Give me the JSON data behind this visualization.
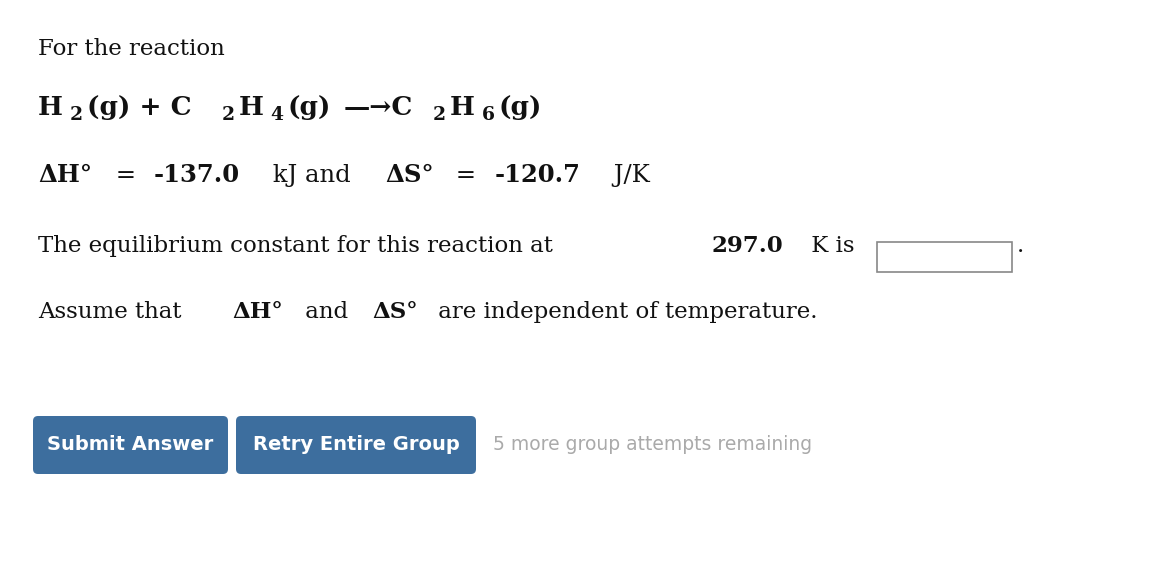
{
  "background_color": "#ffffff",
  "line1": "For the reaction",
  "btn1_text": "Submit Answer",
  "btn2_text": "Retry Entire Group",
  "btn_color": "#3d6e9e",
  "btn_text_color": "#ffffff",
  "remaining_text": "5 more group attempts remaining",
  "remaining_color": "#aaaaaa",
  "text_color": "#111111",
  "line3_parts": [
    [
      "ΔH°",
      true
    ],
    [
      " = ",
      false
    ],
    [
      "-137.0",
      true
    ],
    [
      " kJ and ",
      false
    ],
    [
      "ΔS°",
      true
    ],
    [
      " = ",
      false
    ],
    [
      "-120.7",
      true
    ],
    [
      " J/K",
      false
    ]
  ],
  "line4_parts": [
    [
      "The equilibrium constant for this reaction at ",
      false
    ],
    [
      "297.0",
      true
    ],
    [
      " K is",
      false
    ]
  ],
  "line5_parts": [
    [
      "Assume that ",
      false
    ],
    [
      "ΔH°",
      true
    ],
    [
      " and ",
      false
    ],
    [
      "ΔS°",
      true
    ],
    [
      " are independent of temperature.",
      false
    ]
  ]
}
